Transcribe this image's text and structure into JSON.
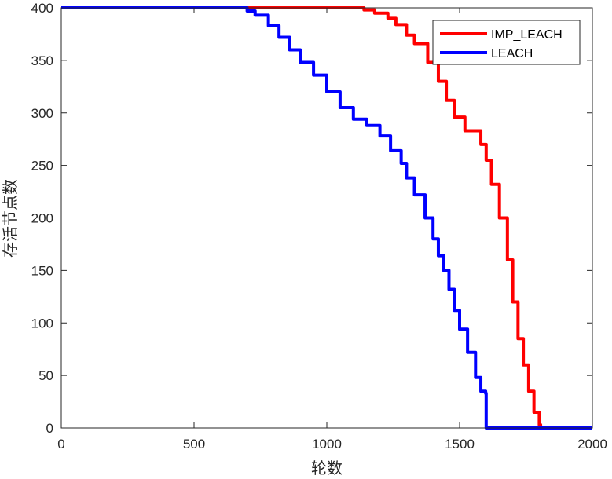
{
  "chart_data": {
    "type": "line",
    "title": "",
    "xlabel": "轮数",
    "ylabel": "存活节点数",
    "xlim": [
      0,
      2000
    ],
    "ylim": [
      0,
      400
    ],
    "xticks": [
      0,
      500,
      1000,
      1500,
      2000
    ],
    "yticks": [
      0,
      50,
      100,
      150,
      200,
      250,
      300,
      350,
      400
    ],
    "grid": false,
    "legend_position": "top-right",
    "series": [
      {
        "name": "IMP_LEACH",
        "color": "#ff0000",
        "x": [
          0,
          690,
          1080,
          1140,
          1180,
          1230,
          1260,
          1300,
          1330,
          1380,
          1420,
          1450,
          1480,
          1520,
          1580,
          1600,
          1620,
          1650,
          1680,
          1700,
          1720,
          1740,
          1760,
          1780,
          1800,
          1805,
          2000
        ],
        "y": [
          400,
          400,
          400,
          398,
          395,
          390,
          384,
          374,
          366,
          348,
          330,
          312,
          296,
          283,
          270,
          255,
          232,
          200,
          160,
          120,
          85,
          60,
          35,
          15,
          3,
          0,
          0
        ]
      },
      {
        "name": "LEACH",
        "color": "#0000ff",
        "x": [
          0,
          660,
          700,
          730,
          780,
          820,
          860,
          900,
          950,
          1000,
          1050,
          1100,
          1150,
          1200,
          1240,
          1280,
          1300,
          1330,
          1370,
          1400,
          1420,
          1440,
          1460,
          1480,
          1500,
          1530,
          1560,
          1580,
          1598,
          1600,
          1602,
          2000
        ],
        "y": [
          400,
          400,
          397,
          393,
          383,
          372,
          360,
          348,
          336,
          320,
          305,
          294,
          288,
          278,
          264,
          252,
          238,
          222,
          200,
          180,
          164,
          150,
          132,
          112,
          94,
          72,
          48,
          35,
          33,
          0,
          0,
          0
        ]
      }
    ]
  }
}
